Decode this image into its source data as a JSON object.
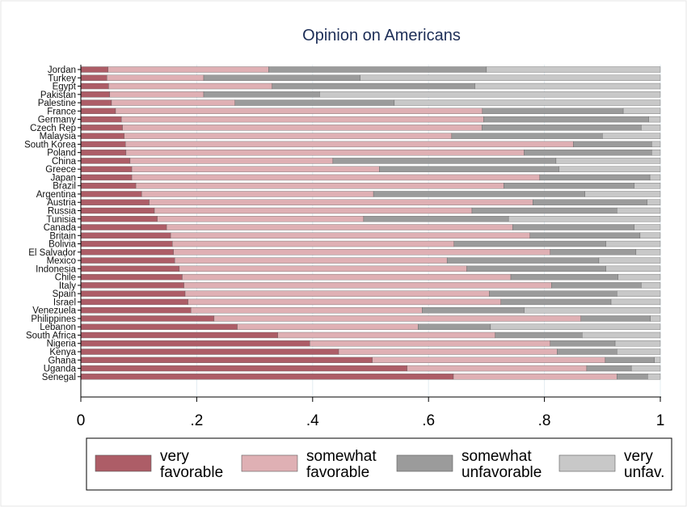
{
  "chart_data": {
    "type": "bar",
    "stacked": true,
    "orientation": "horizontal",
    "title": "Opinion on Americans",
    "xlabel": "",
    "ylabel": "",
    "xlim": [
      0,
      1
    ],
    "x_ticks": [
      0,
      0.2,
      0.4,
      0.6,
      0.8,
      1
    ],
    "x_tick_labels": [
      "0",
      ".2",
      ".4",
      ".6",
      ".8",
      "1"
    ],
    "grid": true,
    "legend_position": "bottom",
    "categories": [
      "Jordan",
      "Turkey",
      "Egypt",
      "Pakistan",
      "Palestine",
      "France",
      "Germany",
      "Czech Rep",
      "Malaysia",
      "South Korea",
      "Poland",
      "China",
      "Greece",
      "Japan",
      "Brazil",
      "Argentina",
      "Austria",
      "Russia",
      "Tunisia",
      "Canada",
      "Britain",
      "Bolivia",
      "El Salvador",
      "Mexico",
      "Indonesia",
      "Chile",
      "Italy",
      "Spain",
      "Israel",
      "Venezuela",
      "Philippines",
      "Lebanon",
      "South Africa",
      "Nigeria",
      "Kenya",
      "Ghana",
      "Uganda",
      "Senegal"
    ],
    "series": [
      {
        "name": "very favorable",
        "legend_lines": [
          "very",
          "favorable"
        ],
        "color": "#ad5d67",
        "values": [
          0.047,
          0.045,
          0.048,
          0.05,
          0.053,
          0.06,
          0.07,
          0.072,
          0.075,
          0.077,
          0.078,
          0.085,
          0.088,
          0.088,
          0.095,
          0.105,
          0.118,
          0.127,
          0.132,
          0.148,
          0.155,
          0.158,
          0.16,
          0.162,
          0.17,
          0.175,
          0.178,
          0.18,
          0.185,
          0.19,
          0.23,
          0.27,
          0.34,
          0.395,
          0.445,
          0.503,
          0.563,
          0.643
        ]
      },
      {
        "name": "somewhat favorable",
        "legend_lines": [
          "somewhat",
          "favorable"
        ],
        "color": "#dfb0b4",
        "values": [
          0.277,
          0.167,
          0.282,
          0.162,
          0.213,
          0.633,
          0.625,
          0.62,
          0.565,
          0.773,
          0.687,
          0.35,
          0.427,
          0.704,
          0.635,
          0.4,
          0.662,
          0.548,
          0.356,
          0.597,
          0.62,
          0.486,
          0.65,
          0.47,
          0.496,
          0.567,
          0.634,
          0.525,
          0.54,
          0.399,
          0.633,
          0.312,
          0.375,
          0.415,
          0.377,
          0.402,
          0.31,
          0.282
        ]
      },
      {
        "name": "somewhat unfavorable",
        "legend_lines": [
          "somewhat",
          "unfavorable"
        ],
        "color": "#9b9b9b",
        "values": [
          0.376,
          0.27,
          0.35,
          0.2,
          0.275,
          0.243,
          0.285,
          0.275,
          0.26,
          0.135,
          0.22,
          0.385,
          0.31,
          0.19,
          0.225,
          0.365,
          0.197,
          0.25,
          0.25,
          0.21,
          0.19,
          0.262,
          0.148,
          0.262,
          0.24,
          0.185,
          0.155,
          0.22,
          0.19,
          0.176,
          0.12,
          0.125,
          0.15,
          0.112,
          0.103,
          0.085,
          0.077,
          0.053
        ]
      },
      {
        "name": "very unfav.",
        "legend_lines": [
          "very",
          "unfav."
        ],
        "color": "#c8c8c8",
        "values": [
          0.3,
          0.518,
          0.32,
          0.588,
          0.459,
          0.064,
          0.02,
          0.033,
          0.1,
          0.015,
          0.015,
          0.18,
          0.175,
          0.018,
          0.045,
          0.13,
          0.023,
          0.075,
          0.262,
          0.045,
          0.035,
          0.094,
          0.042,
          0.106,
          0.094,
          0.073,
          0.033,
          0.075,
          0.085,
          0.235,
          0.017,
          0.293,
          0.135,
          0.078,
          0.075,
          0.01,
          0.05,
          0.022
        ]
      }
    ]
  }
}
